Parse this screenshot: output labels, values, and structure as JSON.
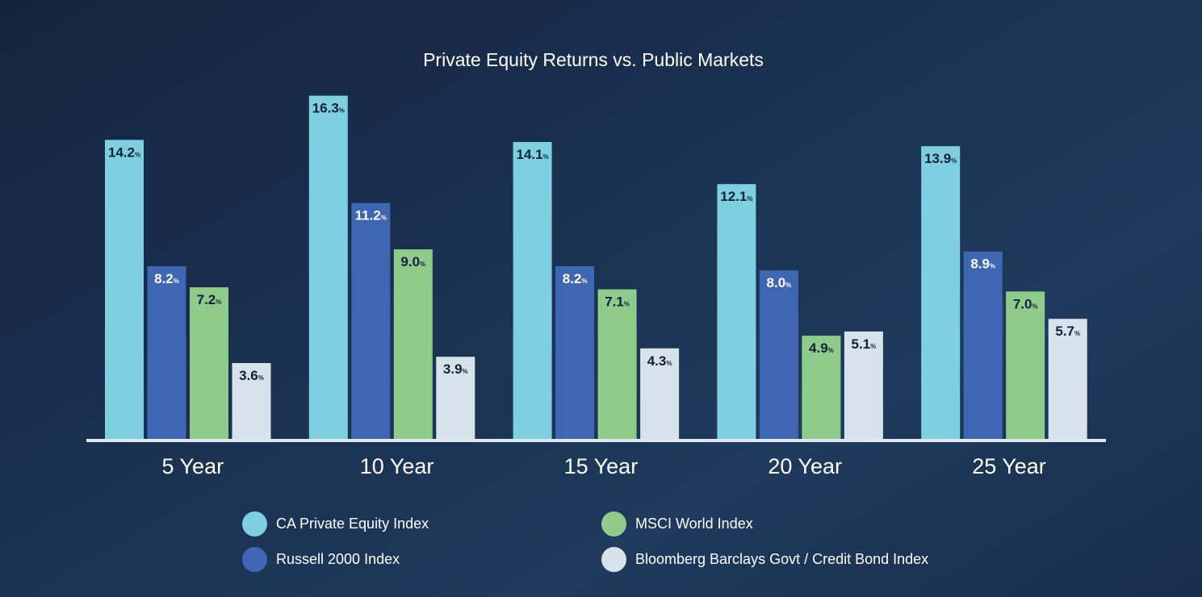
{
  "chart_data": {
    "type": "bar",
    "title": "Private Equity Returns vs. Public Markets",
    "categories": [
      "5 Year",
      "10 Year",
      "15 Year",
      "20 Year",
      "25 Year"
    ],
    "value_suffix": "%",
    "ylim": [
      0,
      17
    ],
    "grid": false,
    "legend_position": "bottom",
    "series": [
      {
        "name": "CA Private Equity Index",
        "color": "#7ecfdf",
        "label_color": "#10213a",
        "values": [
          14.2,
          16.3,
          14.1,
          12.1,
          13.9
        ]
      },
      {
        "name": "Russell 2000 Index",
        "color": "#3e66b3",
        "label_color": "#ffffff",
        "values": [
          8.2,
          11.2,
          8.2,
          8.0,
          8.9
        ]
      },
      {
        "name": "MSCI World Index",
        "color": "#8fcc8c",
        "label_color": "#10213a",
        "values": [
          7.2,
          9.0,
          7.1,
          4.9,
          7.0
        ]
      },
      {
        "name": "Bloomberg Barclays Govt / Credit Bond Index",
        "color": "#d7e3ea",
        "label_color": "#10213a",
        "values": [
          3.6,
          3.9,
          4.3,
          5.1,
          5.7
        ]
      }
    ]
  }
}
